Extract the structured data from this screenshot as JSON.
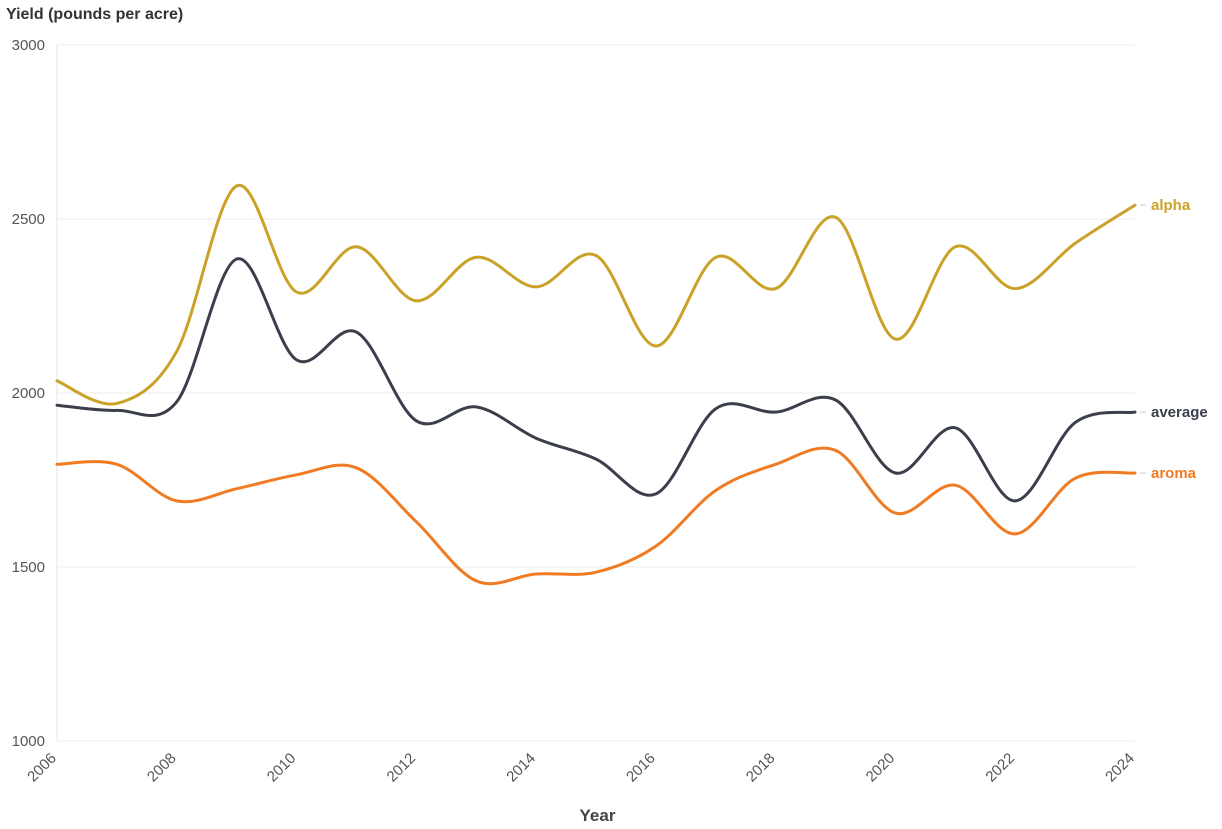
{
  "chart_data": {
    "type": "line",
    "ylabel": "Yield (pounds per acre)",
    "xlabel": "Year",
    "xlim": [
      2006,
      2024
    ],
    "ylim": [
      1000,
      3000
    ],
    "x_ticks": [
      "2006",
      "2008",
      "2010",
      "2012",
      "2014",
      "2016",
      "2018",
      "2020",
      "2022",
      "2024"
    ],
    "y_ticks": [
      "1000",
      "1500",
      "2000",
      "2500",
      "3000"
    ],
    "grid": true,
    "x": [
      2006,
      2007,
      2008,
      2009,
      2010,
      2011,
      2012,
      2013,
      2014,
      2015,
      2016,
      2017,
      2018,
      2019,
      2020,
      2021,
      2022,
      2023,
      2024
    ],
    "series": [
      {
        "name": "alpha",
        "color": "#c9a227",
        "values": [
          2035,
          1970,
          2120,
          2595,
          2290,
          2420,
          2265,
          2390,
          2305,
          2395,
          2135,
          2390,
          2300,
          2505,
          2155,
          2420,
          2300,
          2430,
          2540
        ]
      },
      {
        "name": "average",
        "color": "#3a3f4b",
        "values": [
          1965,
          1950,
          1975,
          2385,
          2095,
          2175,
          1920,
          1960,
          1870,
          1810,
          1710,
          1955,
          1945,
          1980,
          1770,
          1900,
          1690,
          1915,
          1945
        ]
      },
      {
        "name": "aroma",
        "color": "#f07b22",
        "values": [
          1795,
          1795,
          1690,
          1725,
          1765,
          1785,
          1630,
          1460,
          1480,
          1485,
          1560,
          1720,
          1795,
          1835,
          1655,
          1735,
          1595,
          1755,
          1770
        ]
      }
    ]
  }
}
